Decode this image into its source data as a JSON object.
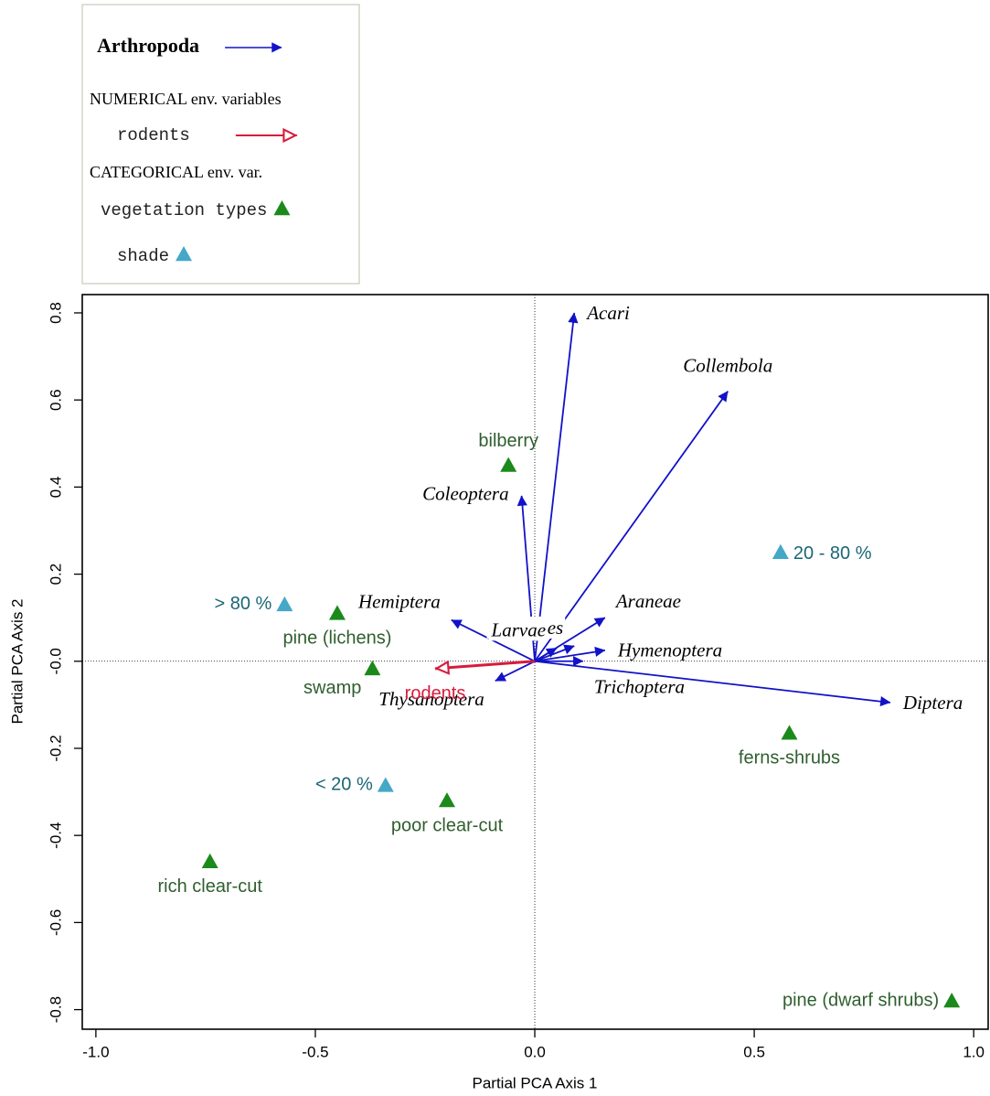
{
  "chart_data": {
    "type": "biplot",
    "xlabel": "Partial PCA Axis 1",
    "ylabel": "Partial PCA Axis 2",
    "xlim": [
      -1.031,
      1.033
    ],
    "ylim": [
      -0.845,
      0.842
    ],
    "xticks": [
      {
        "value": -1,
        "label": "-1.0"
      },
      -0.5,
      {
        "value": 0,
        "label": "0.0"
      },
      0.5,
      {
        "value": 1,
        "label": "1.0"
      }
    ],
    "yticks": [
      0.8,
      0.6,
      0.4,
      0.2,
      {
        "value": 0,
        "label": "-0.0"
      },
      -0.2,
      -0.4,
      -0.6,
      -0.8
    ],
    "zero_lines": true,
    "legend": {
      "headings": [
        "NUMERICAL env. variables",
        "CATEGORICAL env. var."
      ],
      "corner": "top-left"
    },
    "series": [
      {
        "name": "Arthropoda",
        "kind": "arrow",
        "color": "#1212c8",
        "label_color": "#000000",
        "labels": [
          "Acari",
          "Collembola",
          "Coleoptera",
          "Hemiptera",
          "Araneae",
          "Hymenoptera",
          "Diptera",
          "Thysanoptera",
          "Trichoptera",
          "Opiliones",
          "Larvae"
        ],
        "label_sides": [
          "right",
          "above",
          "left",
          "above-left",
          "above-right",
          "right",
          "right",
          "below-left",
          "below-right",
          "above-left",
          "above-left"
        ],
        "x": [
          0.09,
          0.44,
          -0.03,
          -0.19,
          0.16,
          0.16,
          0.81,
          -0.09,
          0.11,
          0.09,
          0.05
        ],
        "y": [
          0.8,
          0.62,
          0.38,
          0.095,
          0.1,
          0.025,
          -0.095,
          -0.045,
          0.0,
          0.035,
          0.03
        ]
      },
      {
        "name": "rodents",
        "kind": "hollow-arrow",
        "color": "#d81b3c",
        "label_color": "#d81b3c",
        "labels": [
          "rodents"
        ],
        "label_sides": [
          "below"
        ],
        "x": [
          -0.227
        ],
        "y": [
          -0.017
        ]
      },
      {
        "name": "vegetation types",
        "kind": "triangle",
        "color": "#1b8a1b",
        "label_color": "#2f5f2f",
        "labels": [
          "bilberry",
          "pine (lichens)",
          "swamp",
          "ferns-shrubs",
          "poor clear-cut",
          "rich clear-cut",
          "pine (dwarf shrubs)"
        ],
        "label_sides": [
          "above",
          "below",
          "below-left",
          "below",
          "below",
          "below",
          "left"
        ],
        "x": [
          -0.06,
          -0.45,
          -0.37,
          0.58,
          -0.2,
          -0.74,
          0.95
        ],
        "y": [
          0.45,
          0.11,
          -0.017,
          -0.165,
          -0.32,
          -0.46,
          -0.78
        ]
      },
      {
        "name": "shade",
        "kind": "triangle",
        "color": "#45a8c8",
        "label_color": "#1a6676",
        "labels": [
          "20 - 80 %",
          "> 80 %",
          "< 20 %"
        ],
        "label_sides": [
          "right",
          "left",
          "left"
        ],
        "x": [
          0.56,
          -0.57,
          -0.34
        ],
        "y": [
          0.25,
          0.13,
          -0.285
        ]
      }
    ]
  }
}
